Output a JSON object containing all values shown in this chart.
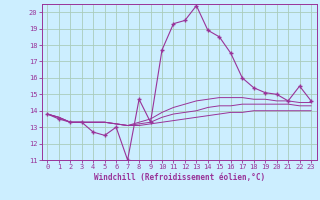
{
  "xlabel": "Windchill (Refroidissement éolien,°C)",
  "background_color": "#cceeff",
  "grid_color": "#aaccbb",
  "line_color": "#993399",
  "x_hours": [
    0,
    1,
    2,
    3,
    4,
    5,
    6,
    7,
    8,
    9,
    10,
    11,
    12,
    13,
    14,
    15,
    16,
    17,
    18,
    19,
    20,
    21,
    22,
    23
  ],
  "windchill": [
    13.8,
    13.5,
    13.3,
    13.3,
    12.7,
    12.5,
    13.0,
    11.0,
    14.7,
    13.3,
    17.7,
    19.3,
    19.5,
    20.4,
    18.9,
    18.5,
    17.5,
    16.0,
    15.4,
    15.1,
    15.0,
    14.6,
    15.5,
    14.6
  ],
  "temp_low": [
    13.8,
    13.6,
    13.3,
    13.3,
    13.3,
    13.3,
    13.2,
    13.1,
    13.1,
    13.2,
    13.3,
    13.4,
    13.5,
    13.6,
    13.7,
    13.8,
    13.9,
    13.9,
    14.0,
    14.0,
    14.0,
    14.0,
    14.0,
    14.0
  ],
  "temp_mid": [
    13.8,
    13.6,
    13.3,
    13.3,
    13.3,
    13.3,
    13.2,
    13.1,
    13.2,
    13.3,
    13.6,
    13.8,
    13.9,
    14.0,
    14.2,
    14.3,
    14.3,
    14.4,
    14.4,
    14.4,
    14.4,
    14.4,
    14.3,
    14.3
  ],
  "temp_high": [
    13.8,
    13.6,
    13.3,
    13.3,
    13.3,
    13.3,
    13.2,
    13.1,
    13.3,
    13.5,
    13.9,
    14.2,
    14.4,
    14.6,
    14.7,
    14.8,
    14.8,
    14.8,
    14.7,
    14.7,
    14.6,
    14.6,
    14.5,
    14.5
  ],
  "ylim": [
    11,
    20.5
  ],
  "xlim": [
    -0.5,
    23.5
  ],
  "yticks": [
    11,
    12,
    13,
    14,
    15,
    16,
    17,
    18,
    19,
    20
  ],
  "xticks": [
    0,
    1,
    2,
    3,
    4,
    5,
    6,
    7,
    8,
    9,
    10,
    11,
    12,
    13,
    14,
    15,
    16,
    17,
    18,
    19,
    20,
    21,
    22,
    23
  ]
}
